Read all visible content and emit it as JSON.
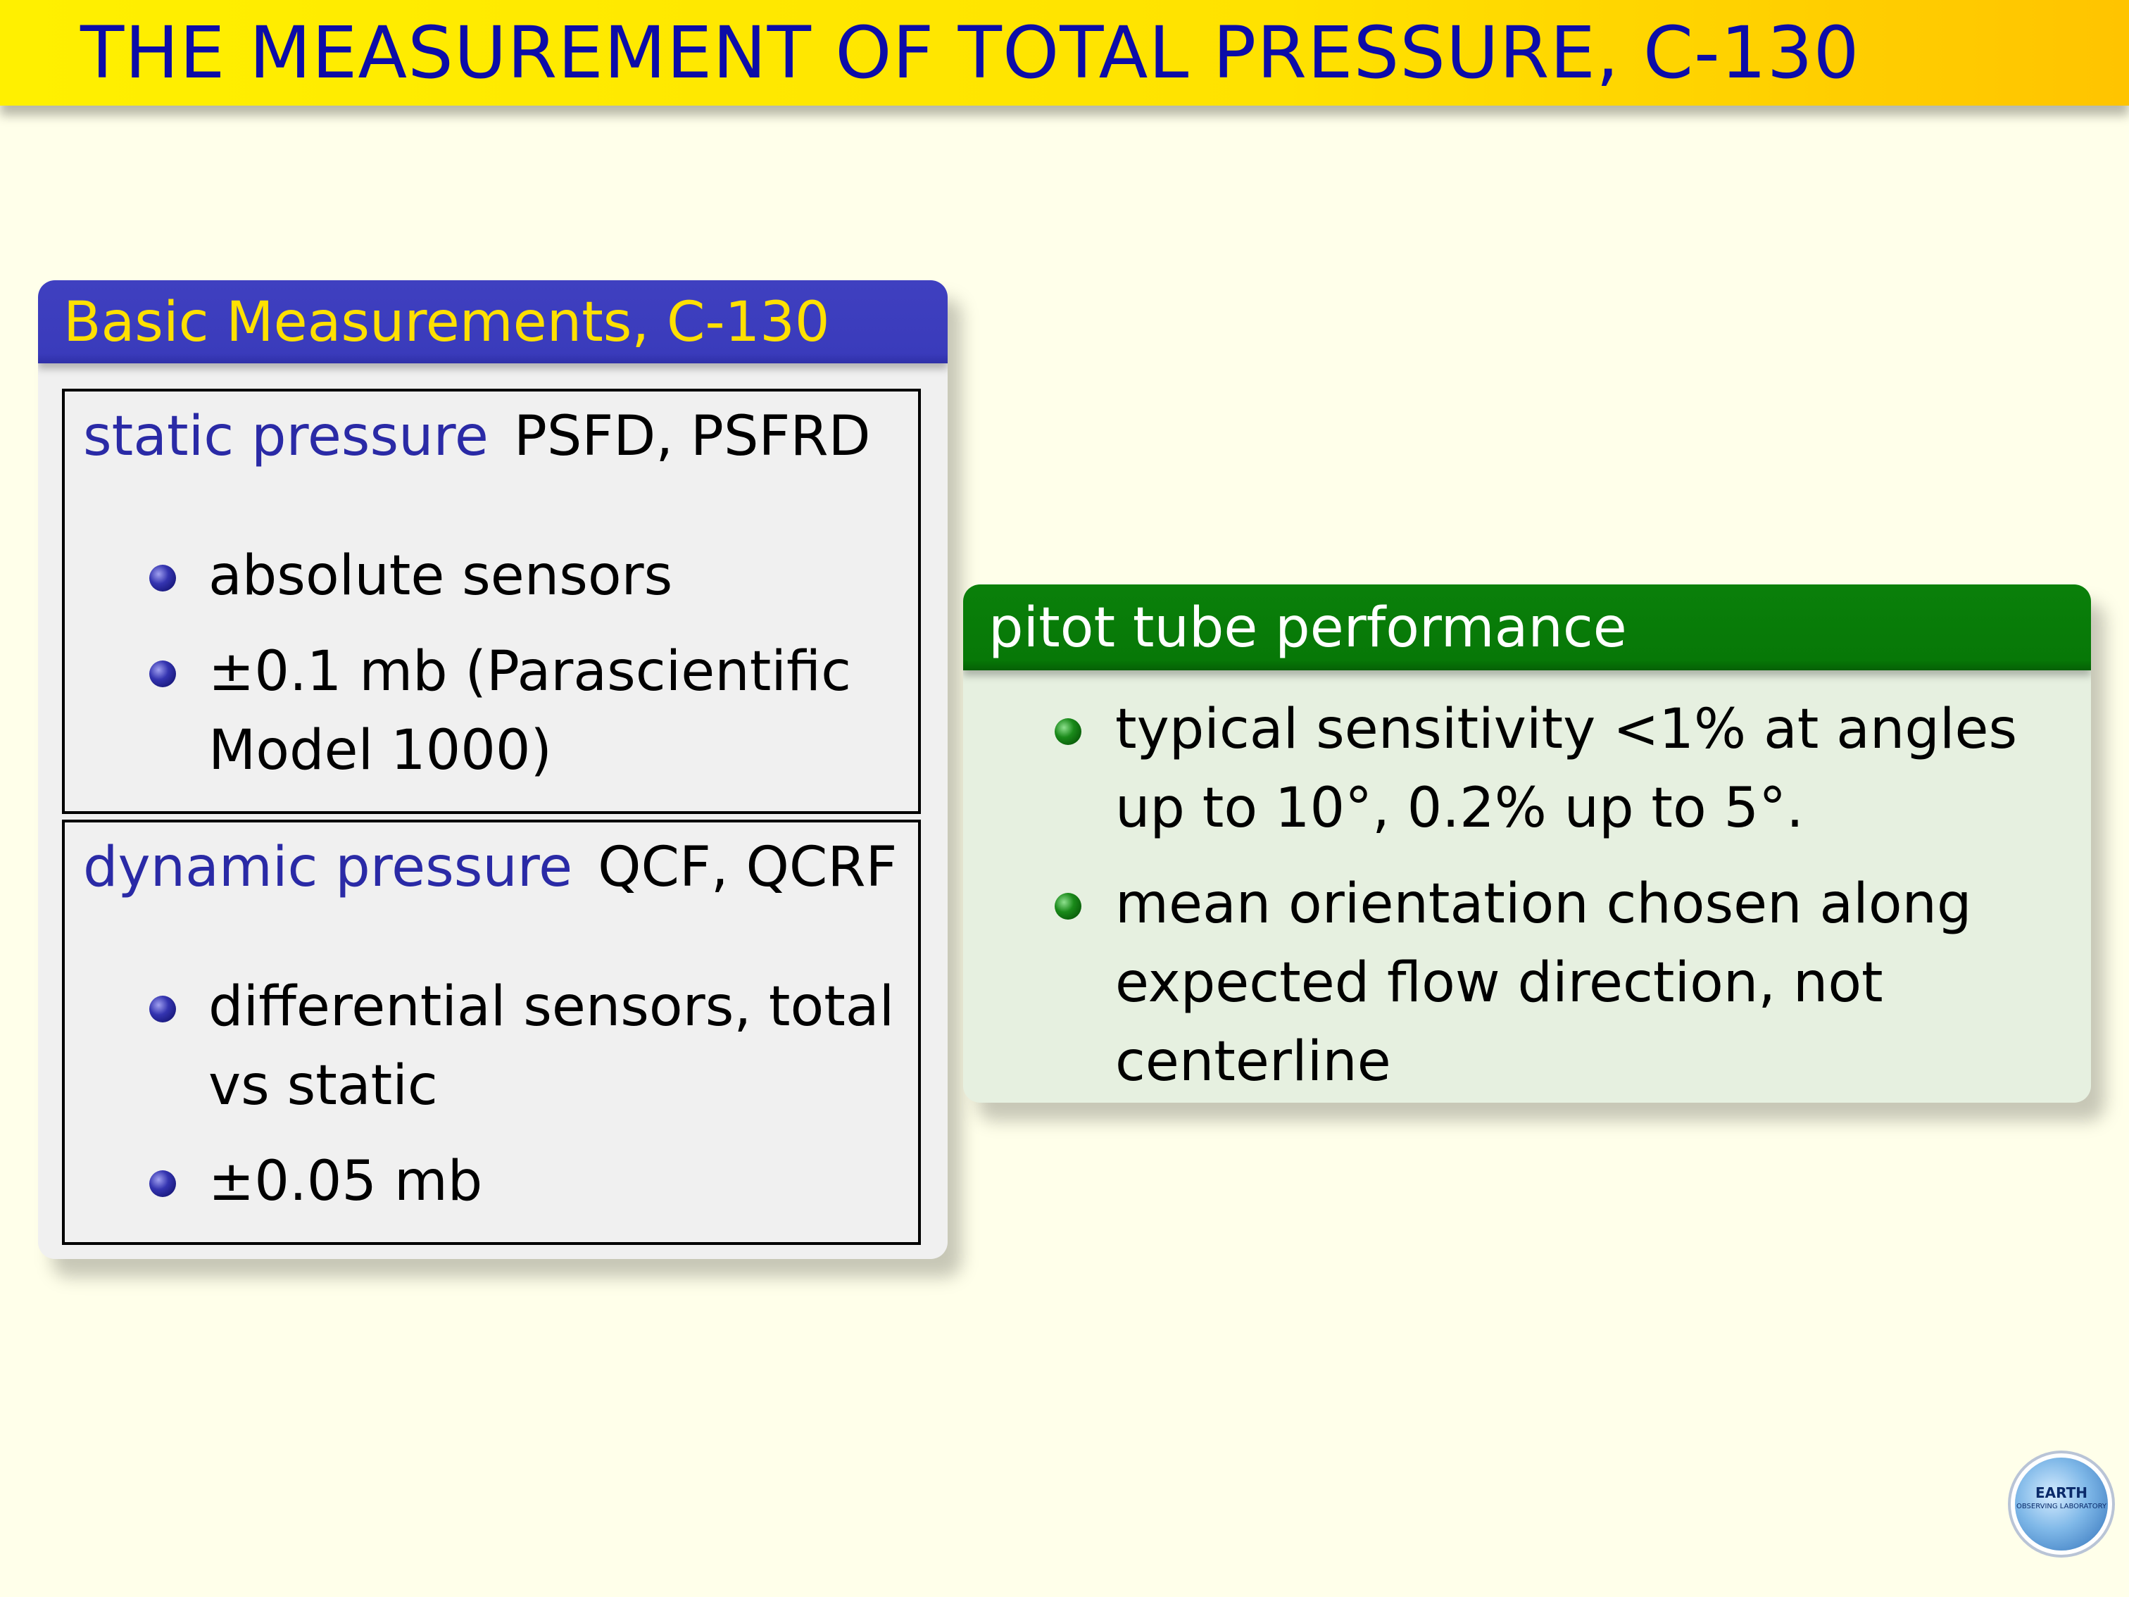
{
  "slide": {
    "title": "THE MEASUREMENT OF TOTAL PRESSURE, C-130"
  },
  "basic_block": {
    "title": "Basic Measurements, C-130",
    "definitions": [
      {
        "term": "static pressure",
        "codes": "PSFD, PSFRD",
        "bullets": [
          "absolute sensors",
          "±0.1 mb (Parascientific Model 1000)"
        ]
      },
      {
        "term": "dynamic pressure",
        "codes": "QCF, QCRF",
        "bullets": [
          "differential sensors, total vs static",
          "±0.05 mb"
        ]
      }
    ]
  },
  "pitot_block": {
    "title": "pitot tube performance",
    "bullets": [
      "typical sensitivity <1% at angles up to 10°, 0.2% up to 5°.",
      "mean orientation chosen along expected flow direction, not centerline"
    ]
  },
  "logo": {
    "main": "EARTH",
    "sub": "OBSERVING LABORATORY"
  },
  "colors": {
    "title_bar": "#ffe600",
    "title_text": "#0c0ca8",
    "basic_header": "#3a3bbb",
    "basic_header_text": "#ffe000",
    "pitot_header": "#077807",
    "pitot_body": "#e6f0e0",
    "term_text": "#2a2aa6",
    "background": "#ffffea"
  }
}
